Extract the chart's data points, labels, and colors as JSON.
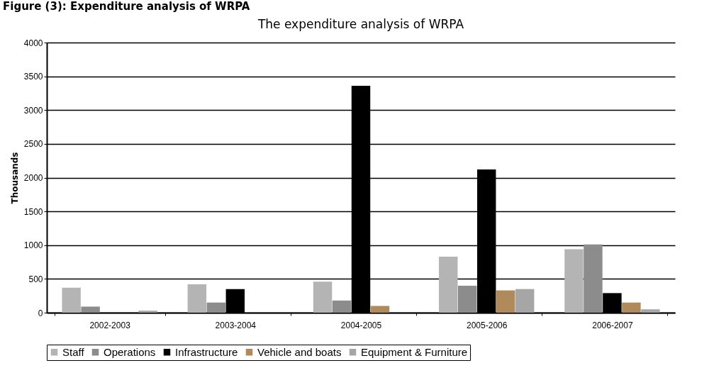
{
  "chart_data": {
    "type": "bar",
    "title": "The expenditure analysis of WRPA",
    "ylabel": "Thousands",
    "annotations": [
      "Figure (3): Expenditure analysis of WRPA"
    ],
    "categories": [
      "2002-2003",
      "2003-2004",
      "2004-2005",
      "2005-2006",
      "2006-2007"
    ],
    "series": [
      {
        "name": "Staff",
        "color": "#b4b4b4",
        "values": [
          370,
          420,
          460,
          830,
          940
        ]
      },
      {
        "name": "Operations",
        "color": "#8c8c8c",
        "values": [
          90,
          150,
          180,
          400,
          1010
        ]
      },
      {
        "name": "Infrastructure",
        "color": "#000000",
        "values": [
          0,
          350,
          3360,
          2120,
          290
        ]
      },
      {
        "name": "Vehicle and boats",
        "color": "#b08a5a",
        "values": [
          0,
          0,
          100,
          330,
          150
        ]
      },
      {
        "name": "Equipment & Furniture",
        "color": "#a6a6a6",
        "values": [
          30,
          0,
          0,
          350,
          50
        ]
      }
    ],
    "ylim": [
      0,
      4000
    ],
    "yticks": [
      0,
      500,
      1000,
      1500,
      2000,
      2500,
      3000,
      3500,
      4000
    ],
    "grid": true,
    "legend": "bottom"
  }
}
